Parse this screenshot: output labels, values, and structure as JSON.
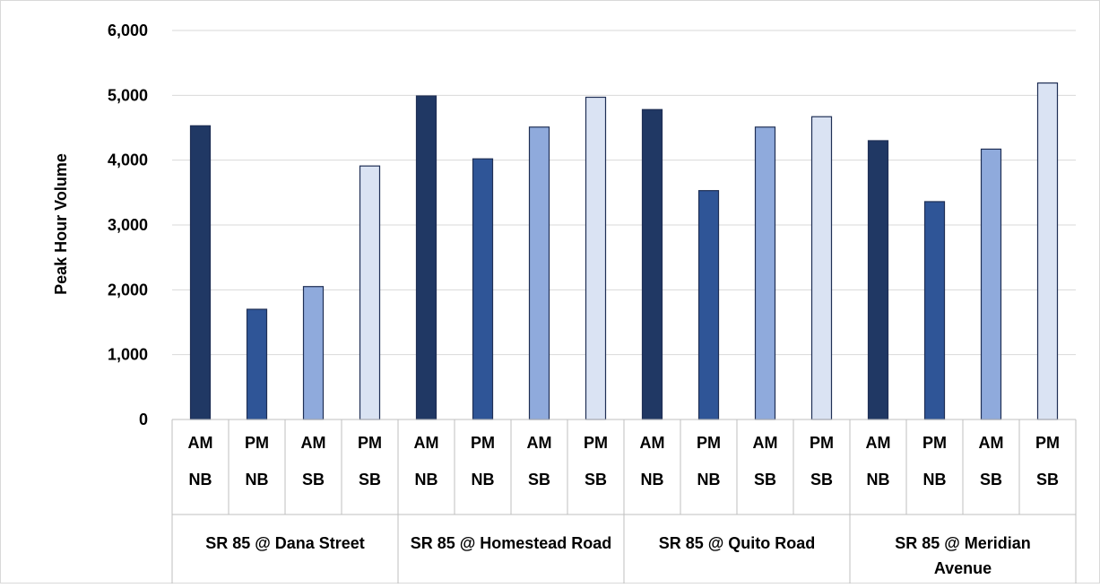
{
  "chart_data": {
    "type": "bar",
    "title": "",
    "xlabel": "",
    "ylabel": "Peak Hour Volume",
    "ylim": [
      0,
      6000
    ],
    "yticks": [
      0,
      1000,
      2000,
      3000,
      4000,
      5000,
      6000
    ],
    "ytick_labels": [
      "0",
      "1,000",
      "2,000",
      "3,000",
      "4,000",
      "5,000",
      "6,000"
    ],
    "grid": true,
    "legend": "none",
    "groups": [
      {
        "label": "SR 85 @ Dana Street",
        "bars": [
          {
            "period": "AM",
            "direction": "NB",
            "value": 4530
          },
          {
            "period": "PM",
            "direction": "NB",
            "value": 1700
          },
          {
            "period": "AM",
            "direction": "SB",
            "value": 2050
          },
          {
            "period": "PM",
            "direction": "SB",
            "value": 3910
          }
        ]
      },
      {
        "label": "SR 85 @ Homestead Road",
        "bars": [
          {
            "period": "AM",
            "direction": "NB",
            "value": 4990
          },
          {
            "period": "PM",
            "direction": "NB",
            "value": 4020
          },
          {
            "period": "AM",
            "direction": "SB",
            "value": 4510
          },
          {
            "period": "PM",
            "direction": "SB",
            "value": 4970
          }
        ]
      },
      {
        "label": "SR 85 @ Quito Road",
        "bars": [
          {
            "period": "AM",
            "direction": "NB",
            "value": 4780
          },
          {
            "period": "PM",
            "direction": "NB",
            "value": 3530
          },
          {
            "period": "AM",
            "direction": "SB",
            "value": 4510
          },
          {
            "period": "PM",
            "direction": "SB",
            "value": 4670
          }
        ]
      },
      {
        "label": "SR 85 @ Meridian Avenue",
        "bars": [
          {
            "period": "AM",
            "direction": "NB",
            "value": 4300
          },
          {
            "period": "PM",
            "direction": "NB",
            "value": 3360
          },
          {
            "period": "AM",
            "direction": "SB",
            "value": 4170
          },
          {
            "period": "PM",
            "direction": "SB",
            "value": 5190
          }
        ]
      }
    ],
    "colors": {
      "AM NB": "#203864",
      "PM NB": "#2F5597",
      "AM SB": "#8FAADC",
      "PM SB": "#DAE3F3"
    },
    "bar_outline": "#1F2F55",
    "gridline_color": "#D9D9D9"
  }
}
